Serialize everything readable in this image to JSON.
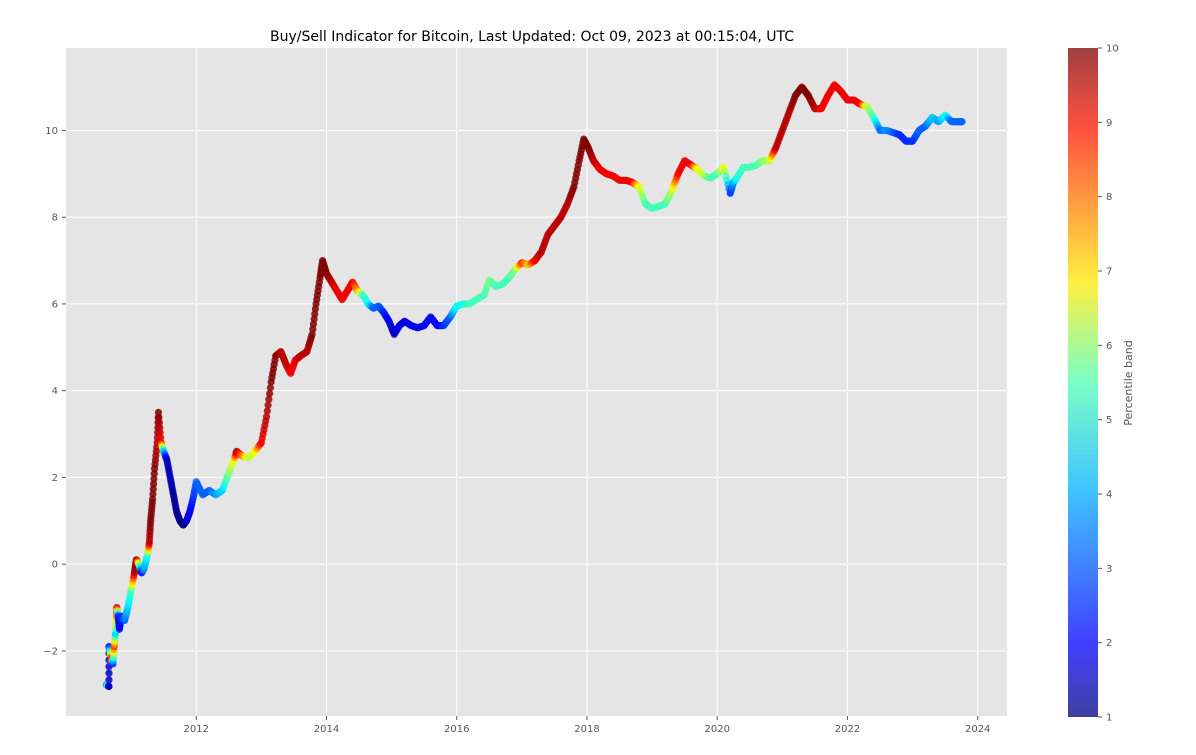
{
  "chart_data": {
    "type": "scatter",
    "title": "Buy/Sell Indicator for Bitcoin, Last Updated: Oct 09, 2023 at 00:15:04, UTC",
    "xlabel": "",
    "ylabel": "",
    "x_ticks": [
      2012,
      2014,
      2016,
      2018,
      2020,
      2022,
      2024
    ],
    "y_ticks": [
      -2,
      0,
      2,
      4,
      6,
      8,
      10
    ],
    "y_tick_labels": [
      "−2",
      "0",
      "2",
      "4",
      "6",
      "8",
      "10"
    ],
    "xlim": [
      2010.0,
      2024.45
    ],
    "ylim": [
      -3.5,
      11.9
    ],
    "grid": true,
    "background_color": "#e5e5e5",
    "colormap": "jet",
    "colorbar": {
      "label": "Percentile band",
      "range": [
        1,
        10
      ],
      "ticks": [
        1,
        2,
        3,
        4,
        5,
        6,
        7,
        8,
        9,
        10
      ]
    },
    "series": [
      {
        "points": [
          [
            2010.62,
            -2.78,
            3.0
          ],
          [
            2010.64,
            -2.8,
            5.0
          ],
          [
            2010.66,
            -2.82,
            1.5
          ],
          [
            2010.66,
            -1.9,
            2.0
          ],
          [
            2010.7,
            -2.2,
            9.5
          ],
          [
            2010.72,
            -2.3,
            2.5
          ],
          [
            2010.74,
            -1.9,
            8.5
          ],
          [
            2010.76,
            -1.6,
            4.0
          ],
          [
            2010.78,
            -1.0,
            9.5
          ],
          [
            2010.8,
            -1.2,
            2.5
          ],
          [
            2010.82,
            -1.5,
            2.0
          ],
          [
            2010.85,
            -1.2,
            2.5
          ],
          [
            2010.9,
            -1.3,
            3.0
          ],
          [
            2010.95,
            -1.0,
            4.0
          ],
          [
            2011.0,
            -0.6,
            5.0
          ],
          [
            2011.05,
            -0.2,
            9.5
          ],
          [
            2011.08,
            0.1,
            10.0
          ],
          [
            2011.12,
            0.0,
            6.0
          ],
          [
            2011.16,
            -0.2,
            2.0
          ],
          [
            2011.2,
            -0.1,
            3.5
          ],
          [
            2011.25,
            0.2,
            4.5
          ],
          [
            2011.28,
            0.5,
            9.5
          ],
          [
            2011.3,
            1.0,
            10.0
          ],
          [
            2011.33,
            1.5,
            10.0
          ],
          [
            2011.36,
            2.2,
            10.0
          ],
          [
            2011.4,
            2.8,
            9.5
          ],
          [
            2011.42,
            3.5,
            10.0
          ],
          [
            2011.46,
            2.8,
            9.0
          ],
          [
            2011.5,
            2.6,
            4.0
          ],
          [
            2011.55,
            2.4,
            1.5
          ],
          [
            2011.6,
            2.0,
            1.5
          ],
          [
            2011.65,
            1.6,
            1.2
          ],
          [
            2011.7,
            1.2,
            1.2
          ],
          [
            2011.75,
            1.0,
            1.2
          ],
          [
            2011.8,
            0.9,
            1.0
          ],
          [
            2011.85,
            1.0,
            1.5
          ],
          [
            2011.9,
            1.2,
            2.0
          ],
          [
            2011.95,
            1.5,
            2.5
          ],
          [
            2012.0,
            1.9,
            3.0
          ],
          [
            2012.1,
            1.6,
            3.0
          ],
          [
            2012.2,
            1.7,
            3.0
          ],
          [
            2012.3,
            1.6,
            3.5
          ],
          [
            2012.4,
            1.7,
            4.0
          ],
          [
            2012.5,
            2.1,
            5.5
          ],
          [
            2012.58,
            2.4,
            6.5
          ],
          [
            2012.62,
            2.6,
            9.5
          ],
          [
            2012.7,
            2.5,
            8.0
          ],
          [
            2012.8,
            2.45,
            6.0
          ],
          [
            2012.9,
            2.6,
            6.5
          ],
          [
            2013.0,
            2.8,
            9.0
          ],
          [
            2013.08,
            3.4,
            9.5
          ],
          [
            2013.15,
            4.2,
            10.0
          ],
          [
            2013.22,
            4.8,
            10.0
          ],
          [
            2013.3,
            4.9,
            9.5
          ],
          [
            2013.38,
            4.6,
            9.5
          ],
          [
            2013.45,
            4.4,
            9.0
          ],
          [
            2013.52,
            4.7,
            9.0
          ],
          [
            2013.6,
            4.8,
            9.5
          ],
          [
            2013.7,
            4.9,
            9.5
          ],
          [
            2013.78,
            5.3,
            10.0
          ],
          [
            2013.84,
            6.0,
            10.0
          ],
          [
            2013.9,
            6.6,
            10.0
          ],
          [
            2013.94,
            7.0,
            10.0
          ],
          [
            2014.0,
            6.7,
            10.0
          ],
          [
            2014.08,
            6.5,
            9.5
          ],
          [
            2014.16,
            6.3,
            9.0
          ],
          [
            2014.24,
            6.1,
            9.0
          ],
          [
            2014.32,
            6.3,
            9.0
          ],
          [
            2014.4,
            6.5,
            9.0
          ],
          [
            2014.48,
            6.3,
            7.5
          ],
          [
            2014.56,
            6.2,
            5.0
          ],
          [
            2014.64,
            6.0,
            4.5
          ],
          [
            2014.72,
            5.9,
            3.0
          ],
          [
            2014.8,
            5.95,
            3.0
          ],
          [
            2014.88,
            5.8,
            2.5
          ],
          [
            2014.96,
            5.6,
            2.0
          ],
          [
            2015.04,
            5.3,
            1.5
          ],
          [
            2015.12,
            5.5,
            2.0
          ],
          [
            2015.2,
            5.6,
            1.8
          ],
          [
            2015.3,
            5.5,
            2.0
          ],
          [
            2015.4,
            5.45,
            2.0
          ],
          [
            2015.5,
            5.5,
            2.0
          ],
          [
            2015.6,
            5.7,
            2.2
          ],
          [
            2015.7,
            5.5,
            2.0
          ],
          [
            2015.8,
            5.5,
            2.5
          ],
          [
            2015.9,
            5.7,
            3.0
          ],
          [
            2016.0,
            5.95,
            4.5
          ],
          [
            2016.1,
            6.0,
            4.5
          ],
          [
            2016.2,
            6.0,
            5.0
          ],
          [
            2016.3,
            6.1,
            5.0
          ],
          [
            2016.42,
            6.2,
            5.0
          ],
          [
            2016.5,
            6.55,
            5.5
          ],
          [
            2016.6,
            6.4,
            5.0
          ],
          [
            2016.7,
            6.45,
            5.0
          ],
          [
            2016.8,
            6.6,
            5.0
          ],
          [
            2016.9,
            6.8,
            5.5
          ],
          [
            2017.0,
            6.95,
            8.5
          ],
          [
            2017.1,
            6.9,
            7.0
          ],
          [
            2017.2,
            7.0,
            9.0
          ],
          [
            2017.3,
            7.2,
            9.5
          ],
          [
            2017.4,
            7.6,
            9.5
          ],
          [
            2017.5,
            7.8,
            9.5
          ],
          [
            2017.6,
            8.0,
            9.5
          ],
          [
            2017.7,
            8.3,
            9.5
          ],
          [
            2017.8,
            8.7,
            10.0
          ],
          [
            2017.88,
            9.3,
            10.0
          ],
          [
            2017.95,
            9.8,
            10.0
          ],
          [
            2018.02,
            9.6,
            10.0
          ],
          [
            2018.1,
            9.3,
            9.5
          ],
          [
            2018.2,
            9.1,
            9.0
          ],
          [
            2018.3,
            9.0,
            9.0
          ],
          [
            2018.4,
            8.95,
            9.0
          ],
          [
            2018.5,
            8.85,
            9.0
          ],
          [
            2018.6,
            8.85,
            9.0
          ],
          [
            2018.7,
            8.8,
            9.0
          ],
          [
            2018.8,
            8.7,
            6.5
          ],
          [
            2018.9,
            8.3,
            5.0
          ],
          [
            2019.0,
            8.2,
            5.0
          ],
          [
            2019.1,
            8.25,
            5.0
          ],
          [
            2019.2,
            8.3,
            5.0
          ],
          [
            2019.3,
            8.6,
            6.0
          ],
          [
            2019.4,
            9.0,
            9.0
          ],
          [
            2019.5,
            9.3,
            9.0
          ],
          [
            2019.6,
            9.2,
            9.0
          ],
          [
            2019.7,
            9.1,
            6.5
          ],
          [
            2019.8,
            8.95,
            6.0
          ],
          [
            2019.9,
            8.9,
            5.0
          ],
          [
            2020.0,
            9.0,
            5.0
          ],
          [
            2020.1,
            9.15,
            6.5
          ],
          [
            2020.2,
            8.55,
            2.5
          ],
          [
            2020.25,
            8.8,
            3.5
          ],
          [
            2020.3,
            8.9,
            4.5
          ],
          [
            2020.4,
            9.15,
            5.0
          ],
          [
            2020.5,
            9.15,
            5.0
          ],
          [
            2020.6,
            9.2,
            5.0
          ],
          [
            2020.7,
            9.3,
            5.5
          ],
          [
            2020.8,
            9.3,
            6.0
          ],
          [
            2020.9,
            9.6,
            9.5
          ],
          [
            2021.0,
            10.0,
            9.5
          ],
          [
            2021.1,
            10.4,
            9.5
          ],
          [
            2021.2,
            10.8,
            10.0
          ],
          [
            2021.3,
            11.0,
            10.0
          ],
          [
            2021.4,
            10.8,
            10.0
          ],
          [
            2021.5,
            10.5,
            9.5
          ],
          [
            2021.6,
            10.5,
            9.0
          ],
          [
            2021.7,
            10.8,
            9.0
          ],
          [
            2021.8,
            11.05,
            9.0
          ],
          [
            2021.9,
            10.9,
            9.0
          ],
          [
            2022.0,
            10.7,
            9.0
          ],
          [
            2022.1,
            10.7,
            9.0
          ],
          [
            2022.2,
            10.6,
            9.0
          ],
          [
            2022.3,
            10.55,
            6.0
          ],
          [
            2022.4,
            10.3,
            5.0
          ],
          [
            2022.5,
            10.0,
            3.0
          ],
          [
            2022.6,
            10.0,
            3.5
          ],
          [
            2022.7,
            9.95,
            3.0
          ],
          [
            2022.8,
            9.9,
            2.5
          ],
          [
            2022.9,
            9.75,
            2.5
          ],
          [
            2023.0,
            9.75,
            2.5
          ],
          [
            2023.1,
            10.0,
            3.0
          ],
          [
            2023.2,
            10.1,
            3.0
          ],
          [
            2023.3,
            10.3,
            4.0
          ],
          [
            2023.4,
            10.2,
            3.5
          ],
          [
            2023.5,
            10.35,
            4.5
          ],
          [
            2023.6,
            10.2,
            3.0
          ],
          [
            2023.7,
            10.2,
            3.0
          ],
          [
            2023.76,
            10.2,
            3.0
          ]
        ]
      }
    ]
  }
}
